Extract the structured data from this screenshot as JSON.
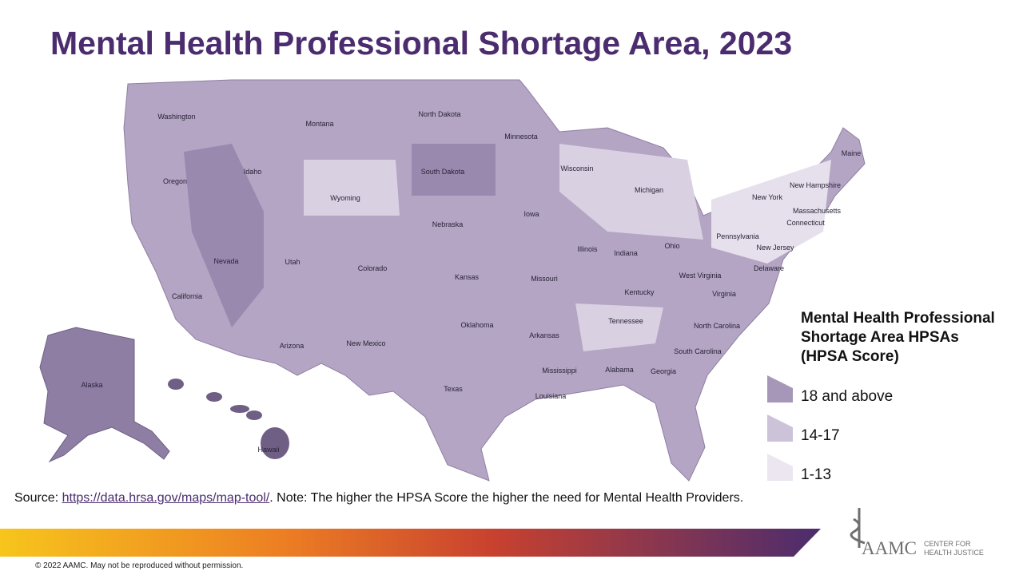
{
  "title": "Mental Health Professional Shortage Area, 2023",
  "map": {
    "states": [
      "Washington",
      "Montana",
      "North Dakota",
      "Minnesota",
      "Idaho",
      "Oregon",
      "Wyoming",
      "South Dakota",
      "Wisconsin",
      "Michigan",
      "New York",
      "New Hampshire",
      "Maine",
      "Massachusetts",
      "Connecticut",
      "Iowa",
      "Nebraska",
      "Pennsylvania",
      "New Jersey",
      "Illinois",
      "Indiana",
      "Ohio",
      "Nevada",
      "Utah",
      "Colorado",
      "Kansas",
      "Missouri",
      "West Virginia",
      "Delaware",
      "Virginia",
      "Kentucky",
      "California",
      "Tennessee",
      "North Carolina",
      "Oklahoma",
      "Arkansas",
      "Arizona",
      "New Mexico",
      "South Carolina",
      "Mississippi",
      "Alabama",
      "Georgia",
      "Texas",
      "Louisiana",
      "Alaska",
      "Hawaii"
    ]
  },
  "legend": {
    "title": [
      "Mental Health Professional",
      "Shortage Area HPSAs",
      "(HPSA Score)"
    ],
    "items": [
      {
        "label": "18 and above",
        "color": "#a697b8"
      },
      {
        "label": "14-17",
        "color": "#cdc3d8"
      },
      {
        "label": "1-13",
        "color": "#ebe6f0"
      }
    ]
  },
  "source": {
    "prefix": "Source:",
    "link": "https://data.hrsa.gov/maps/map-tool/",
    "note": ". Note: The higher the HPSA Score the higher the need for Mental Health Providers."
  },
  "logo": {
    "name": "AAMC",
    "line1": "CENTER FOR",
    "line2": "HEALTH JUSTICE"
  },
  "footer": {
    "copyright": "© 2022 AAMC. May not be reproduced without permission."
  }
}
